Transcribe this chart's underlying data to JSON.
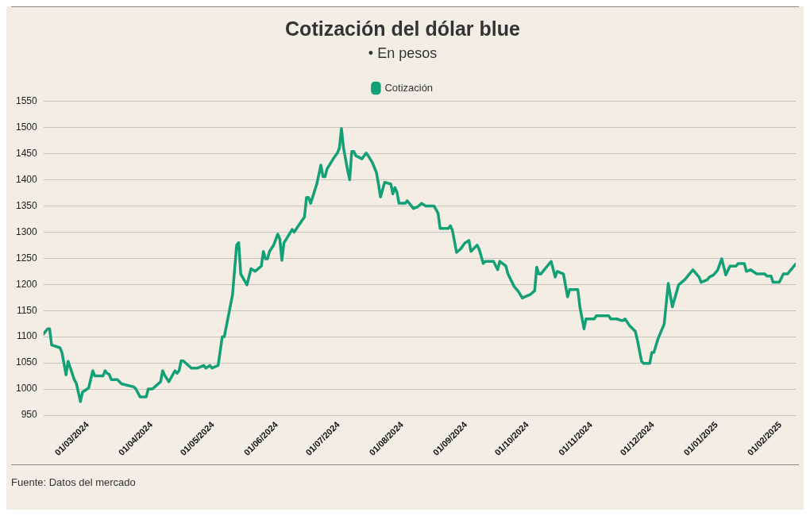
{
  "chart_data": {
    "type": "line",
    "title": "Cotización del dólar blue",
    "subtitle": "• En pesos",
    "annotations": [
      "Fuente: Datos del mercado"
    ],
    "x": [
      "2024-02-16",
      "2024-02-18",
      "2024-02-19",
      "2024-02-20",
      "2024-02-24",
      "2024-02-25",
      "2024-02-27",
      "2024-02-28",
      "2024-03-02",
      "2024-03-03",
      "2024-03-05",
      "2024-03-06",
      "2024-03-09",
      "2024-03-11",
      "2024-03-12",
      "2024-03-16",
      "2024-03-17",
      "2024-03-18",
      "2024-03-19",
      "2024-03-20",
      "2024-03-23",
      "2024-03-25",
      "2024-03-31",
      "2024-04-01",
      "2024-04-03",
      "2024-04-06",
      "2024-04-07",
      "2024-04-09",
      "2024-04-13",
      "2024-04-14",
      "2024-04-15",
      "2024-04-17",
      "2024-04-20",
      "2024-04-21",
      "2024-04-22",
      "2024-04-23",
      "2024-04-24",
      "2024-04-28",
      "2024-05-01",
      "2024-05-04",
      "2024-05-05",
      "2024-05-07",
      "2024-05-08",
      "2024-05-11",
      "2024-05-13",
      "2024-05-14",
      "2024-05-18",
      "2024-05-20",
      "2024-05-21",
      "2024-05-22",
      "2024-05-25",
      "2024-05-27",
      "2024-05-29",
      "2024-06-01",
      "2024-06-02",
      "2024-06-03",
      "2024-06-04",
      "2024-06-05",
      "2024-06-07",
      "2024-06-09",
      "2024-06-10",
      "2024-06-11",
      "2024-06-12",
      "2024-06-16",
      "2024-06-17",
      "2024-06-22",
      "2024-06-23",
      "2024-06-24",
      "2024-06-25",
      "2024-06-28",
      "2024-06-30",
      "2024-07-01",
      "2024-07-02",
      "2024-07-03",
      "2024-07-06",
      "2024-07-08",
      "2024-07-09",
      "2024-07-10",
      "2024-07-11",
      "2024-07-13",
      "2024-07-14",
      "2024-07-15",
      "2024-07-16",
      "2024-07-17",
      "2024-07-20",
      "2024-07-22",
      "2024-07-23",
      "2024-07-25",
      "2024-07-27",
      "2024-07-28",
      "2024-07-29",
      "2024-07-31",
      "2024-08-03",
      "2024-08-04",
      "2024-08-05",
      "2024-08-06",
      "2024-08-07",
      "2024-08-10",
      "2024-08-11",
      "2024-08-14",
      "2024-08-16",
      "2024-08-18",
      "2024-08-20",
      "2024-08-24",
      "2024-08-26",
      "2024-08-27",
      "2024-08-31",
      "2024-09-01",
      "2024-09-02",
      "2024-09-04",
      "2024-09-06",
      "2024-09-08",
      "2024-09-10",
      "2024-09-11",
      "2024-09-14",
      "2024-09-15",
      "2024-09-17",
      "2024-09-18",
      "2024-09-22",
      "2024-09-24",
      "2024-09-25",
      "2024-09-28",
      "2024-09-29",
      "2024-10-02",
      "2024-10-04",
      "2024-10-06",
      "2024-10-07",
      "2024-10-10",
      "2024-10-12",
      "2024-10-13",
      "2024-10-14",
      "2024-10-15",
      "2024-10-20",
      "2024-10-22",
      "2024-10-23",
      "2024-10-26",
      "2024-10-28",
      "2024-10-29",
      "2024-11-02",
      "2024-11-03",
      "2024-11-05",
      "2024-11-06",
      "2024-11-10",
      "2024-11-11",
      "2024-11-17",
      "2024-11-18",
      "2024-11-21",
      "2024-11-23",
      "2024-11-24",
      "2024-11-25",
      "2024-11-27",
      "2024-11-30",
      "2024-12-01",
      "2024-12-03",
      "2024-12-04",
      "2024-12-07",
      "2024-12-08",
      "2024-12-09",
      "2024-12-11",
      "2024-12-14",
      "2024-12-16",
      "2024-12-18",
      "2024-12-21",
      "2024-12-24",
      "2024-12-28",
      "2024-12-31",
      "2025-01-01",
      "2025-01-04",
      "2025-01-05",
      "2025-01-07",
      "2025-01-09",
      "2025-01-11",
      "2025-01-13",
      "2025-01-15",
      "2025-01-18",
      "2025-01-19",
      "2025-01-22",
      "2025-01-23",
      "2025-01-25",
      "2025-01-28",
      "2025-02-01",
      "2025-02-02",
      "2025-02-04",
      "2025-02-05",
      "2025-02-08",
      "2025-02-10",
      "2025-02-12",
      "2025-02-16"
    ],
    "series": [
      {
        "name": "Cotización",
        "color": "#14a077",
        "values": [
          1105,
          1115,
          1115,
          1084,
          1079,
          1070,
          1027,
          1053,
          1018,
          1011,
          976,
          994,
          1002,
          1035,
          1025,
          1025,
          1035,
          1030,
          1028,
          1018,
          1018,
          1010,
          1004,
          1000,
          985,
          985,
          1000,
          1000,
          1014,
          1035,
          1026,
          1014,
          1035,
          1030,
          1035,
          1054,
          1054,
          1040,
          1040,
          1045,
          1040,
          1045,
          1040,
          1045,
          1100,
          1100,
          1180,
          1275,
          1280,
          1220,
          1199,
          1230,
          1225,
          1235,
          1263,
          1249,
          1249,
          1263,
          1275,
          1296,
          1287,
          1246,
          1279,
          1305,
          1300,
          1329,
          1366,
          1366,
          1355,
          1392,
          1428,
          1406,
          1406,
          1421,
          1440,
          1451,
          1461,
          1498,
          1461,
          1418,
          1400,
          1454,
          1454,
          1446,
          1440,
          1451,
          1446,
          1433,
          1414,
          1392,
          1367,
          1395,
          1392,
          1373,
          1385,
          1376,
          1355,
          1355,
          1360,
          1345,
          1348,
          1355,
          1350,
          1350,
          1336,
          1307,
          1307,
          1312,
          1303,
          1261,
          1268,
          1279,
          1284,
          1263,
          1275,
          1267,
          1240,
          1244,
          1244,
          1228,
          1244,
          1235,
          1220,
          1196,
          1187,
          1174,
          1176,
          1181,
          1188,
          1233,
          1220,
          1220,
          1244,
          1214,
          1225,
          1220,
          1176,
          1190,
          1190,
          1157,
          1115,
          1134,
          1134,
          1140,
          1140,
          1134,
          1134,
          1131,
          1131,
          1134,
          1122,
          1110,
          1093,
          1053,
          1049,
          1049,
          1070,
          1070,
          1096,
          1124,
          1202,
          1157,
          1199,
          1209,
          1228,
          1214,
          1204,
          1209,
          1214,
          1218,
          1227,
          1249,
          1218,
          1235,
          1235,
          1240,
          1240,
          1225,
          1228,
          1220,
          1220,
          1216,
          1216,
          1204,
          1204,
          1220,
          1220,
          1239
        ]
      }
    ],
    "xlim": [
      "2024-02-16",
      "2025-02-16"
    ],
    "xticks": [
      {
        "value": "2024-03-01",
        "label": "01/03/2024"
      },
      {
        "value": "2024-04-01",
        "label": "01/04/2024"
      },
      {
        "value": "2024-05-01",
        "label": "01/05/2024"
      },
      {
        "value": "2024-06-01",
        "label": "01/06/2024"
      },
      {
        "value": "2024-07-01",
        "label": "01/07/2024"
      },
      {
        "value": "2024-08-01",
        "label": "01/08/2024"
      },
      {
        "value": "2024-09-01",
        "label": "01/09/2024"
      },
      {
        "value": "2024-10-01",
        "label": "01/10/2024"
      },
      {
        "value": "2024-11-01",
        "label": "01/11/2024"
      },
      {
        "value": "2024-12-01",
        "label": "01/12/2024"
      },
      {
        "value": "2025-01-01",
        "label": "01/01/2025"
      },
      {
        "value": "2025-02-01",
        "label": "01/02/2025"
      }
    ],
    "ylim": [
      950,
      1550
    ],
    "yticks": [
      950,
      1000,
      1050,
      1100,
      1150,
      1200,
      1250,
      1300,
      1350,
      1400,
      1450,
      1500,
      1550
    ],
    "grid": "y",
    "legend": "top",
    "marker": "none",
    "line_style": "solid"
  }
}
